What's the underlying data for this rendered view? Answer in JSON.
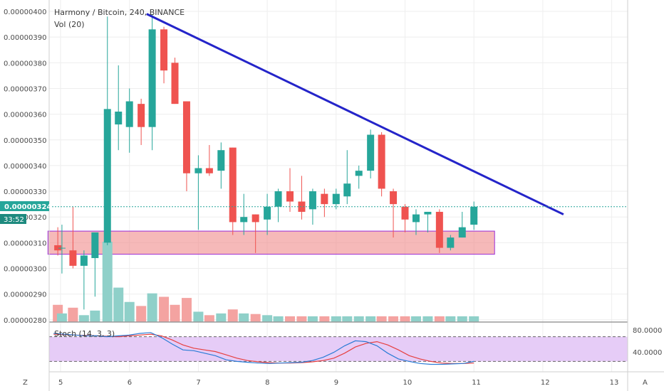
{
  "header": {
    "symbol": "Harmony / Bitcoin",
    "interval": "240",
    "exchange": "BINANCE",
    "volume_label": "Vol (20)"
  },
  "price_axis": {
    "ticks": [
      "0.00000400",
      "0.00000390",
      "0.00000380",
      "0.00000370",
      "0.00000360",
      "0.00000350",
      "0.00000340",
      "0.00000330",
      "0.00000320",
      "0.00000310",
      "0.00000300",
      "0.00000290",
      "0.00000280"
    ],
    "current_price": "0.00000324",
    "countdown": "33:52"
  },
  "time_axis": {
    "ticks": [
      "5",
      "6",
      "7",
      "8",
      "9",
      "10",
      "11",
      "12",
      "13"
    ]
  },
  "stoch": {
    "label": "Stoch (14, 3, 3)",
    "ticks": [
      "80.0000",
      "40.0000"
    ]
  },
  "corner_buttons": {
    "left": "Z",
    "right": "A"
  },
  "colors": {
    "up": "#26a69a",
    "down": "#ef5350",
    "up_volume": "#8fd0c9",
    "down_volume": "#f4a3a1",
    "trendline": "#2424c9",
    "zone_fill": "#f08a8a",
    "zone_border": "#9b2bd6",
    "stoch_bg": "#e6ccf7",
    "stoch_k": "#2a7cd6",
    "stoch_d": "#e64040",
    "price_badge": "#26a69a"
  },
  "chart_data": {
    "type": "candlestick",
    "title": "Harmony / Bitcoin, 240, BINANCE",
    "ylim": [
      2.8e-06,
      4e-06
    ],
    "candles": [
      {
        "t": 4.96,
        "o": 3.09e-06,
        "h": 3.16e-06,
        "l": 3.05e-06,
        "c": 3.07e-06
      },
      {
        "t": 5.02,
        "o": 3.08e-06,
        "h": 3.17e-06,
        "l": 2.98e-06,
        "c": 3.08e-06
      },
      {
        "t": 5.18,
        "o": 3.07e-06,
        "h": 3.24e-06,
        "l": 3e-06,
        "c": 3.01e-06
      },
      {
        "t": 5.34,
        "o": 3.01e-06,
        "h": 3.07e-06,
        "l": 2.84e-06,
        "c": 3.05e-06
      },
      {
        "t": 5.5,
        "o": 3.04e-06,
        "h": 3.13e-06,
        "l": 2.89e-06,
        "c": 3.14e-06
      },
      {
        "t": 5.68,
        "o": 3.1e-06,
        "h": 3.98e-06,
        "l": 3.09e-06,
        "c": 3.62e-06
      },
      {
        "t": 5.84,
        "o": 3.56e-06,
        "h": 3.79e-06,
        "l": 3.46e-06,
        "c": 3.61e-06
      },
      {
        "t": 6.0,
        "o": 3.55e-06,
        "h": 3.7e-06,
        "l": 3.45e-06,
        "c": 3.65e-06
      },
      {
        "t": 6.17,
        "o": 3.64e-06,
        "h": 3.66e-06,
        "l": 3.48e-06,
        "c": 3.55e-06
      },
      {
        "t": 6.33,
        "o": 3.55e-06,
        "h": 3.99e-06,
        "l": 3.46e-06,
        "c": 3.93e-06
      },
      {
        "t": 6.5,
        "o": 3.93e-06,
        "h": 3.94e-06,
        "l": 3.72e-06,
        "c": 3.77e-06
      },
      {
        "t": 6.66,
        "o": 3.8e-06,
        "h": 3.82e-06,
        "l": 3.64e-06,
        "c": 3.64e-06
      },
      {
        "t": 6.83,
        "o": 3.65e-06,
        "h": 3.65e-06,
        "l": 3.3e-06,
        "c": 3.37e-06
      },
      {
        "t": 7.0,
        "o": 3.37e-06,
        "h": 3.44e-06,
        "l": 3.15e-06,
        "c": 3.39e-06
      },
      {
        "t": 7.16,
        "o": 3.39e-06,
        "h": 3.48e-06,
        "l": 3.36e-06,
        "c": 3.37e-06
      },
      {
        "t": 7.33,
        "o": 3.38e-06,
        "h": 3.49e-06,
        "l": 3.31e-06,
        "c": 3.46e-06
      },
      {
        "t": 7.5,
        "o": 3.47e-06,
        "h": 3.47e-06,
        "l": 3.13e-06,
        "c": 3.18e-06
      },
      {
        "t": 7.66,
        "o": 3.18e-06,
        "h": 3.29e-06,
        "l": 3.13e-06,
        "c": 3.2e-06
      },
      {
        "t": 7.83,
        "o": 3.21e-06,
        "h": 3.21e-06,
        "l": 3.06e-06,
        "c": 3.18e-06
      },
      {
        "t": 8.0,
        "o": 3.19e-06,
        "h": 3.29e-06,
        "l": 3.13e-06,
        "c": 3.24e-06
      },
      {
        "t": 8.16,
        "o": 3.24e-06,
        "h": 3.31e-06,
        "l": 3.18e-06,
        "c": 3.3e-06
      },
      {
        "t": 8.33,
        "o": 3.3e-06,
        "h": 3.39e-06,
        "l": 3.22e-06,
        "c": 3.26e-06
      },
      {
        "t": 8.5,
        "o": 3.26e-06,
        "h": 3.36e-06,
        "l": 3.19e-06,
        "c": 3.22e-06
      },
      {
        "t": 8.66,
        "o": 3.23e-06,
        "h": 3.31e-06,
        "l": 3.17e-06,
        "c": 3.3e-06
      },
      {
        "t": 8.83,
        "o": 3.29e-06,
        "h": 3.31e-06,
        "l": 3.2e-06,
        "c": 3.25e-06
      },
      {
        "t": 9.0,
        "o": 3.25e-06,
        "h": 3.31e-06,
        "l": 3.23e-06,
        "c": 3.29e-06
      },
      {
        "t": 9.16,
        "o": 3.28e-06,
        "h": 3.46e-06,
        "l": 3.25e-06,
        "c": 3.33e-06
      },
      {
        "t": 9.33,
        "o": 3.36e-06,
        "h": 3.4e-06,
        "l": 3.31e-06,
        "c": 3.38e-06
      },
      {
        "t": 9.5,
        "o": 3.38e-06,
        "h": 3.54e-06,
        "l": 3.35e-06,
        "c": 3.52e-06
      },
      {
        "t": 9.66,
        "o": 3.52e-06,
        "h": 3.53e-06,
        "l": 3.28e-06,
        "c": 3.31e-06
      },
      {
        "t": 9.83,
        "o": 3.3e-06,
        "h": 3.31e-06,
        "l": 3.12e-06,
        "c": 3.25e-06
      },
      {
        "t": 10.0,
        "o": 3.24e-06,
        "h": 3.25e-06,
        "l": 3.14e-06,
        "c": 3.19e-06
      },
      {
        "t": 10.16,
        "o": 3.18e-06,
        "h": 3.23e-06,
        "l": 3.13e-06,
        "c": 3.21e-06
      },
      {
        "t": 10.33,
        "o": 3.21e-06,
        "h": 3.22e-06,
        "l": 3.14e-06,
        "c": 3.22e-06
      },
      {
        "t": 10.5,
        "o": 3.22e-06,
        "h": 3.23e-06,
        "l": 3.06e-06,
        "c": 3.08e-06
      },
      {
        "t": 10.66,
        "o": 3.08e-06,
        "h": 3.13e-06,
        "l": 3.07e-06,
        "c": 3.12e-06
      },
      {
        "t": 10.83,
        "o": 3.12e-06,
        "h": 3.22e-06,
        "l": 3.12e-06,
        "c": 3.16e-06
      },
      {
        "t": 11.0,
        "o": 3.17e-06,
        "h": 3.26e-06,
        "l": 3.15e-06,
        "c": 3.24e-06
      }
    ],
    "volume": [
      30,
      15,
      25,
      12,
      20,
      140,
      60,
      35,
      28,
      50,
      44,
      30,
      42,
      18,
      12,
      15,
      22,
      15,
      14,
      12,
      10,
      10,
      10,
      10,
      10,
      10,
      10,
      10,
      10,
      10,
      10,
      10,
      10,
      10,
      10,
      10,
      10,
      10
    ],
    "support_zone": {
      "t_start": 4.9,
      "t_end": 11.3,
      "low": 3.055e-06,
      "high": 3.145e-06
    },
    "trendline": {
      "t1": 6.25,
      "p1": 3.99e-06,
      "t2": 12.3,
      "p2": 3.21e-06
    },
    "stoch_k": [
      88,
      86,
      84,
      82,
      82,
      80,
      82,
      84,
      88,
      90,
      78,
      62,
      48,
      46,
      40,
      34,
      24,
      20,
      18,
      16,
      15,
      16,
      17,
      18,
      22,
      30,
      42,
      58,
      70,
      68,
      58,
      40,
      26,
      20,
      15,
      13,
      13,
      14,
      15,
      20
    ],
    "stoch_d": [
      86,
      85,
      84,
      83,
      82,
      81,
      80,
      82,
      84,
      86,
      82,
      72,
      60,
      52,
      48,
      44,
      36,
      28,
      22,
      19,
      17,
      16,
      16,
      17,
      19,
      22,
      28,
      40,
      55,
      64,
      68,
      60,
      48,
      34,
      26,
      20,
      16,
      15,
      15,
      16
    ]
  }
}
